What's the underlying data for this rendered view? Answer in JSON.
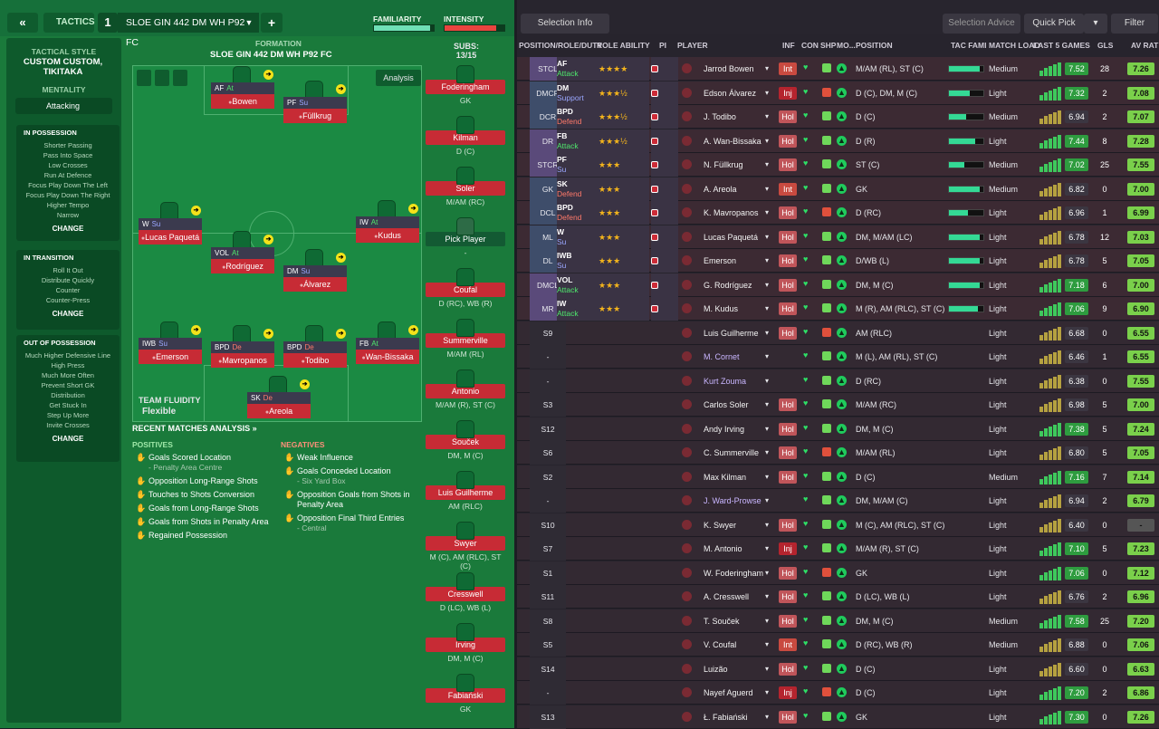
{
  "topbar": {
    "back": "«",
    "tactics": "TACTICS",
    "slot": "1",
    "tactic_name": "SLOE GIN 442 DM WH P92 FC",
    "add": "+",
    "familiarity": "FAMILIARITY",
    "intensity": "INTENSITY",
    "familiarity_level": 0.94,
    "intensity_level": 0.86
  },
  "sidebar": {
    "style_label": "TACTICAL STYLE",
    "style_value": "CUSTOM CUSTOM, TIKITAKA",
    "mentality_label": "MENTALITY",
    "mentality_value": "Attacking",
    "in_possession": {
      "title": "IN POSSESSION",
      "items": [
        "Shorter Passing",
        "Pass Into Space",
        "Low Crosses",
        "Run At Defence",
        "Focus Play Down The Left",
        "Focus Play Down The Right",
        "Higher Tempo",
        "Narrow"
      ],
      "change": "CHANGE"
    },
    "in_transition": {
      "title": "IN TRANSITION",
      "items": [
        "Roll It Out",
        "Distribute Quickly",
        "Counter",
        "Counter-Press"
      ],
      "change": "CHANGE"
    },
    "out_of_possession": {
      "title": "OUT OF POSSESSION",
      "items": [
        "Much Higher Defensive Line",
        "High Press",
        "Much More Often",
        "Prevent Short GK",
        "Distribution",
        "Get Stuck In",
        "Step Up More",
        "Invite Crosses"
      ],
      "change": "CHANGE"
    }
  },
  "formation": {
    "label": "FORMATION",
    "name": "SLOE GIN 442 DM WH P92 FC",
    "analysis": "Analysis",
    "fluidity_label": "TEAM FLUIDITY",
    "fluidity_value": "Flexible"
  },
  "pitch_players": [
    {
      "role": "AF",
      "duty": "At",
      "name": "Bowen"
    },
    {
      "role": "PF",
      "duty": "Su",
      "name": "Füllkrug"
    },
    {
      "role": "W",
      "duty": "Su",
      "name": "Lucas Paquetá"
    },
    {
      "role": "IW",
      "duty": "At",
      "name": "Kudus"
    },
    {
      "role": "VOL",
      "duty": "At",
      "name": "Rodríguez"
    },
    {
      "role": "DM",
      "duty": "Su",
      "name": "Álvarez"
    },
    {
      "role": "IWB",
      "duty": "Su",
      "name": "Emerson"
    },
    {
      "role": "BPD",
      "duty": "De",
      "name": "Mavropanos"
    },
    {
      "role": "BPD",
      "duty": "De",
      "name": "Todibo"
    },
    {
      "role": "FB",
      "duty": "At",
      "name": "Wan-Bissaka"
    },
    {
      "role": "SK",
      "duty": "De",
      "name": "Areola"
    }
  ],
  "subs": {
    "label": "SUBS:",
    "count": "13/15",
    "list": [
      {
        "name": "Foderingham",
        "pos": "GK"
      },
      {
        "name": "Kilman",
        "pos": "D (C)"
      },
      {
        "name": "Soler",
        "pos": "M/AM (RC)"
      },
      {
        "name": "Pick Player",
        "pos": "-"
      },
      {
        "name": "Coufal",
        "pos": "D (RC), WB (R)"
      },
      {
        "name": "Summerville",
        "pos": "M/AM (RL)"
      },
      {
        "name": "Antonio",
        "pos": "M/AM (R), ST (C)"
      },
      {
        "name": "Souček",
        "pos": "DM, M (C)"
      },
      {
        "name": "Luis Guilherme",
        "pos": "AM (RLC)"
      },
      {
        "name": "Swyer",
        "pos": "M (C), AM (RLC), ST (C)"
      },
      {
        "name": "Cresswell",
        "pos": "D (LC), WB (L)"
      },
      {
        "name": "Irving",
        "pos": "DM, M (C)"
      },
      {
        "name": "Fabiański",
        "pos": "GK"
      }
    ]
  },
  "analysis": {
    "title": "RECENT MATCHES ANALYSIS »",
    "positives_label": "POSITIVES",
    "negatives_label": "NEGATIVES",
    "positives": [
      {
        "t": "Goals Scored Location",
        "s": "- Penalty Area Centre"
      },
      {
        "t": "Opposition Long-Range Shots",
        "s": ""
      },
      {
        "t": "Touches to Shots Conversion",
        "s": ""
      },
      {
        "t": "Goals from Long-Range Shots",
        "s": ""
      },
      {
        "t": "Goals from Shots in Penalty Area",
        "s": ""
      },
      {
        "t": "Regained Possession",
        "s": ""
      }
    ],
    "negatives": [
      {
        "t": "Weak Influence",
        "s": ""
      },
      {
        "t": "Goals Conceded Location",
        "s": "- Six Yard Box"
      },
      {
        "t": "Opposition Goals from Shots in Penalty Area",
        "s": ""
      },
      {
        "t": "Opposition Final Third Entries",
        "s": "- Central"
      }
    ]
  },
  "right_top": {
    "selection_info": "Selection Info",
    "selection_advice": "Selection Advice",
    "quick_pick": "Quick Pick",
    "filter": "Filter"
  },
  "headers": {
    "pos": "POSITION/ROLE/DUTY",
    "ability": "ROLE ABILITY",
    "pi": "PI",
    "player": "PLAYER",
    "inf": "INF",
    "con": "CON",
    "shp": "SHP",
    "mo": "MO...",
    "position": "POSITION",
    "tac": "TAC FAMI",
    "load": "MATCH LOAD",
    "last5": "LAST 5 GAMES",
    "gls": "GLS",
    "avr": "AV RAT"
  },
  "rows": [
    {
      "slot": "STCL",
      "role": "AF",
      "duty": "Attack",
      "stars": "★★★★",
      "name": "Jarrod Bowen",
      "inf": "Int",
      "position": "M/AM (RL), ST (C)",
      "load": "Medium",
      "last": "7.52",
      "gls": "28",
      "avr": "7.26",
      "tac": 0.9
    },
    {
      "slot": "DMCR",
      "role": "DM",
      "duty": "Support",
      "stars": "★★★½",
      "name": "Edson Álvarez",
      "inf": "Inj",
      "position": "D (C), DM, M (C)",
      "load": "Light",
      "last": "7.32",
      "gls": "2",
      "avr": "7.08",
      "tac": 0.6
    },
    {
      "slot": "DCR",
      "role": "BPD",
      "duty": "Defend",
      "stars": "★★★½",
      "name": "J. Todibo",
      "inf": "Hol",
      "position": "D (C)",
      "load": "Medium",
      "last": "6.94",
      "gls": "2",
      "avr": "7.07",
      "tac": 0.5
    },
    {
      "slot": "DR",
      "role": "FB",
      "duty": "Attack",
      "stars": "★★★½",
      "name": "A. Wan-Bissaka",
      "inf": "Hol",
      "position": "D (R)",
      "load": "Light",
      "last": "7.44",
      "gls": "8",
      "avr": "7.28",
      "tac": 0.75
    },
    {
      "slot": "STCR",
      "role": "PF",
      "duty": "Su",
      "stars": "★★★",
      "name": "N. Füllkrug",
      "inf": "Hol",
      "position": "ST (C)",
      "load": "Medium",
      "last": "7.02",
      "gls": "25",
      "avr": "7.55",
      "tac": 0.45
    },
    {
      "slot": "GK",
      "role": "SK",
      "duty": "Defend",
      "stars": "★★★",
      "name": "A. Areola",
      "inf": "Int",
      "position": "GK",
      "load": "Medium",
      "last": "6.82",
      "gls": "0",
      "avr": "7.00",
      "tac": 0.9
    },
    {
      "slot": "DCL",
      "role": "BPD",
      "duty": "Defend",
      "stars": "★★★",
      "name": "K. Mavropanos",
      "inf": "Hol",
      "position": "D (RC)",
      "load": "Light",
      "last": "6.96",
      "gls": "1",
      "avr": "6.99",
      "tac": 0.55
    },
    {
      "slot": "ML",
      "role": "W",
      "duty": "Su",
      "stars": "★★★",
      "name": "Lucas Paquetá",
      "inf": "Hol",
      "position": "DM, M/AM (LC)",
      "load": "Light",
      "last": "6.78",
      "gls": "12",
      "avr": "7.03",
      "tac": 0.9
    },
    {
      "slot": "DL",
      "role": "IWB",
      "duty": "Su",
      "stars": "★★★",
      "name": "Emerson",
      "inf": "Hol",
      "position": "D/WB (L)",
      "load": "Light",
      "last": "6.78",
      "gls": "5",
      "avr": "7.05",
      "tac": 0.9
    },
    {
      "slot": "DMCL",
      "role": "VOL",
      "duty": "Attack",
      "stars": "★★★",
      "name": "G. Rodríguez",
      "inf": "Hol",
      "position": "DM, M (C)",
      "load": "Light",
      "last": "7.18",
      "gls": "6",
      "avr": "7.00",
      "tac": 0.9
    },
    {
      "slot": "MR",
      "role": "IW",
      "duty": "Attack",
      "stars": "★★★",
      "name": "M. Kudus",
      "inf": "Hol",
      "position": "M (R), AM (RLC), ST (C)",
      "load": "Light",
      "last": "7.06",
      "gls": "9",
      "avr": "6.90",
      "tac": 0.85
    },
    {
      "slot": "S9",
      "role": "",
      "duty": "",
      "stars": "",
      "name": "Luis Guilherme",
      "inf": "Hol",
      "position": "AM (RLC)",
      "load": "Light",
      "last": "6.68",
      "gls": "0",
      "avr": "6.55",
      "tac": 0
    },
    {
      "slot": "-",
      "role": "",
      "duty": "",
      "stars": "",
      "name": "M. Cornet",
      "inf": "",
      "position": "M (L), AM (RL), ST (C)",
      "load": "Light",
      "last": "6.46",
      "gls": "1",
      "avr": "6.55",
      "tac": 0
    },
    {
      "slot": "-",
      "role": "",
      "duty": "",
      "stars": "",
      "name": "Kurt Zouma",
      "inf": "",
      "position": "D (RC)",
      "load": "Light",
      "last": "6.38",
      "gls": "0",
      "avr": "7.55",
      "tac": 0
    },
    {
      "slot": "S3",
      "role": "",
      "duty": "",
      "stars": "",
      "name": "Carlos Soler",
      "inf": "Hol",
      "position": "M/AM (RC)",
      "load": "Light",
      "last": "6.98",
      "gls": "5",
      "avr": "7.00",
      "tac": 0
    },
    {
      "slot": "S12",
      "role": "",
      "duty": "",
      "stars": "",
      "name": "Andy Irving",
      "inf": "Hol",
      "position": "DM, M (C)",
      "load": "Light",
      "last": "7.38",
      "gls": "5",
      "avr": "7.24",
      "tac": 0
    },
    {
      "slot": "S6",
      "role": "",
      "duty": "",
      "stars": "",
      "name": "C. Summerville",
      "inf": "Hol",
      "position": "M/AM (RL)",
      "load": "Light",
      "last": "6.80",
      "gls": "5",
      "avr": "7.05",
      "tac": 0
    },
    {
      "slot": "S2",
      "role": "",
      "duty": "",
      "stars": "",
      "name": "Max Kilman",
      "inf": "Hol",
      "position": "D (C)",
      "load": "Medium",
      "last": "7.16",
      "gls": "7",
      "avr": "7.14",
      "tac": 0
    },
    {
      "slot": "-",
      "role": "",
      "duty": "",
      "stars": "",
      "name": "J. Ward-Prowse",
      "inf": "",
      "position": "DM, M/AM (C)",
      "load": "Light",
      "last": "6.94",
      "gls": "2",
      "avr": "6.79",
      "tac": 0
    },
    {
      "slot": "S10",
      "role": "",
      "duty": "",
      "stars": "",
      "name": "K. Swyer",
      "inf": "Hol",
      "position": "M (C), AM (RLC), ST (C)",
      "load": "Light",
      "last": "6.40",
      "gls": "0",
      "avr": "-",
      "tac": 0
    },
    {
      "slot": "S7",
      "role": "",
      "duty": "",
      "stars": "",
      "name": "M. Antonio",
      "inf": "Inj",
      "position": "M/AM (R), ST (C)",
      "load": "Light",
      "last": "7.10",
      "gls": "5",
      "avr": "7.23",
      "tac": 0
    },
    {
      "slot": "S1",
      "role": "",
      "duty": "",
      "stars": "",
      "name": "W. Foderingham",
      "inf": "Hol",
      "position": "GK",
      "load": "Light",
      "last": "7.06",
      "gls": "0",
      "avr": "7.12",
      "tac": 0
    },
    {
      "slot": "S11",
      "role": "",
      "duty": "",
      "stars": "",
      "name": "A. Cresswell",
      "inf": "Hol",
      "position": "D (LC), WB (L)",
      "load": "Light",
      "last": "6.76",
      "gls": "2",
      "avr": "6.96",
      "tac": 0
    },
    {
      "slot": "S8",
      "role": "",
      "duty": "",
      "stars": "",
      "name": "T. Souček",
      "inf": "Hol",
      "position": "DM, M (C)",
      "load": "Medium",
      "last": "7.58",
      "gls": "25",
      "avr": "7.20",
      "tac": 0
    },
    {
      "slot": "S5",
      "role": "",
      "duty": "",
      "stars": "",
      "name": "V. Coufal",
      "inf": "Int",
      "position": "D (RC), WB (R)",
      "load": "Medium",
      "last": "6.88",
      "gls": "0",
      "avr": "7.06",
      "tac": 0
    },
    {
      "slot": "S14",
      "role": "",
      "duty": "",
      "stars": "",
      "name": "Luizão",
      "inf": "Hol",
      "position": "D (C)",
      "load": "Light",
      "last": "6.60",
      "gls": "0",
      "avr": "6.63",
      "tac": 0
    },
    {
      "slot": "-",
      "role": "",
      "duty": "",
      "stars": "",
      "name": "Nayef Aguerd",
      "inf": "Inj",
      "position": "D (C)",
      "load": "Light",
      "last": "7.20",
      "gls": "2",
      "avr": "6.86",
      "tac": 0
    },
    {
      "slot": "S13",
      "role": "",
      "duty": "",
      "stars": "",
      "name": "Ł. Fabiański",
      "inf": "Hol",
      "position": "GK",
      "load": "Light",
      "last": "7.30",
      "gls": "0",
      "avr": "7.26",
      "tac": 0
    }
  ]
}
